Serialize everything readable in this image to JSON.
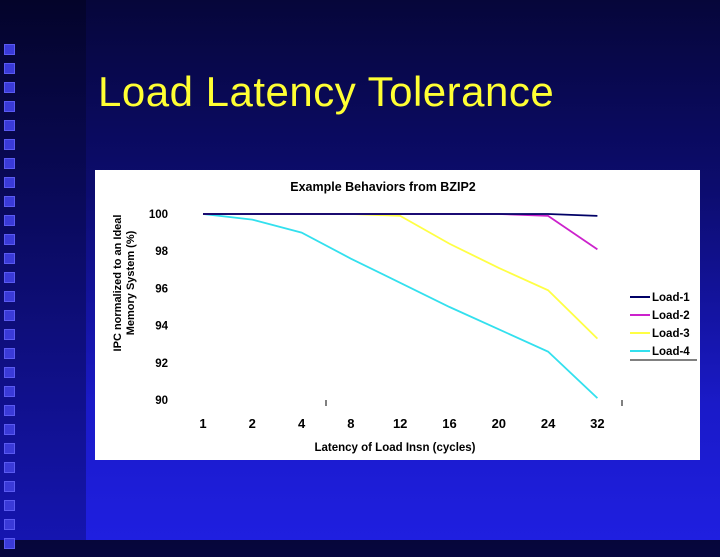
{
  "slide": {
    "title": "Load Latency Tolerance"
  },
  "chart_data": {
    "type": "line",
    "title": "Example Behaviors from BZIP2",
    "xlabel": "Latency of Load Insn (cycles)",
    "ylabel": "IPC normalized to an Ideal Memory System (%)",
    "ylabel_lines": [
      "IPC normalized to an Ideal",
      "Memory System (%)"
    ],
    "categories": [
      "1",
      "2",
      "4",
      "8",
      "12",
      "16",
      "20",
      "24",
      "32"
    ],
    "ylim": [
      90,
      100
    ],
    "yticks": [
      "100",
      "98",
      "96",
      "94",
      "92",
      "90"
    ],
    "grid": false,
    "legend_position": "right",
    "series": [
      {
        "name": "Load-1",
        "color": "#000066",
        "values": [
          100,
          100,
          100,
          100,
          100,
          100,
          100,
          100,
          99.9
        ]
      },
      {
        "name": "Load-2",
        "color": "#cc22cc",
        "values": [
          100,
          100,
          100,
          100,
          100,
          100,
          100,
          99.9,
          98.1
        ]
      },
      {
        "name": "Load-3",
        "color": "#ffff44",
        "values": [
          100,
          100,
          100,
          100,
          99.9,
          98.4,
          97.1,
          95.9,
          93.3
        ]
      },
      {
        "name": "Load-4",
        "color": "#33e0ee",
        "values": [
          100,
          99.7,
          99.0,
          97.6,
          96.3,
          95.0,
          93.8,
          92.6,
          90.1
        ]
      }
    ]
  }
}
